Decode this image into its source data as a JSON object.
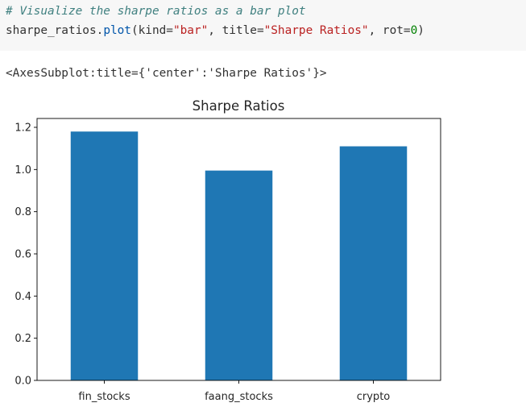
{
  "code_cell": {
    "line1_comment": "# Visualize the sharpe ratios as a bar plot",
    "line2": {
      "object": "sharpe_ratios",
      "dot": ".",
      "method": "plot",
      "open_paren": "(",
      "kw_kind": "kind=",
      "kind_value": "\"bar\"",
      "sep1": ", ",
      "kw_title": "title=",
      "title_value": "\"Sharpe Ratios\"",
      "sep2": ", ",
      "kw_rot": "rot=",
      "rot_value": "0",
      "close_paren": ")"
    }
  },
  "output": {
    "repr": "<AxesSubplot:title={'center':'Sharpe Ratios'}>"
  },
  "colors": {
    "bar": "#1f77b4",
    "code_background": "#f7f7f7"
  },
  "chart_data": {
    "type": "bar",
    "title": "Sharpe Ratios",
    "categories": [
      "fin_stocks",
      "faang_stocks",
      "crypto"
    ],
    "values": [
      1.18,
      0.995,
      1.11
    ],
    "ylim": [
      0,
      1.242
    ],
    "yticks": [
      0.0,
      0.2,
      0.4,
      0.6,
      0.8,
      1.0,
      1.2
    ],
    "ytick_labels": [
      "0.0",
      "0.2",
      "0.4",
      "0.6",
      "0.8",
      "1.0",
      "1.2"
    ],
    "xlabel": "",
    "ylabel": "",
    "grid": false,
    "legend": false
  }
}
